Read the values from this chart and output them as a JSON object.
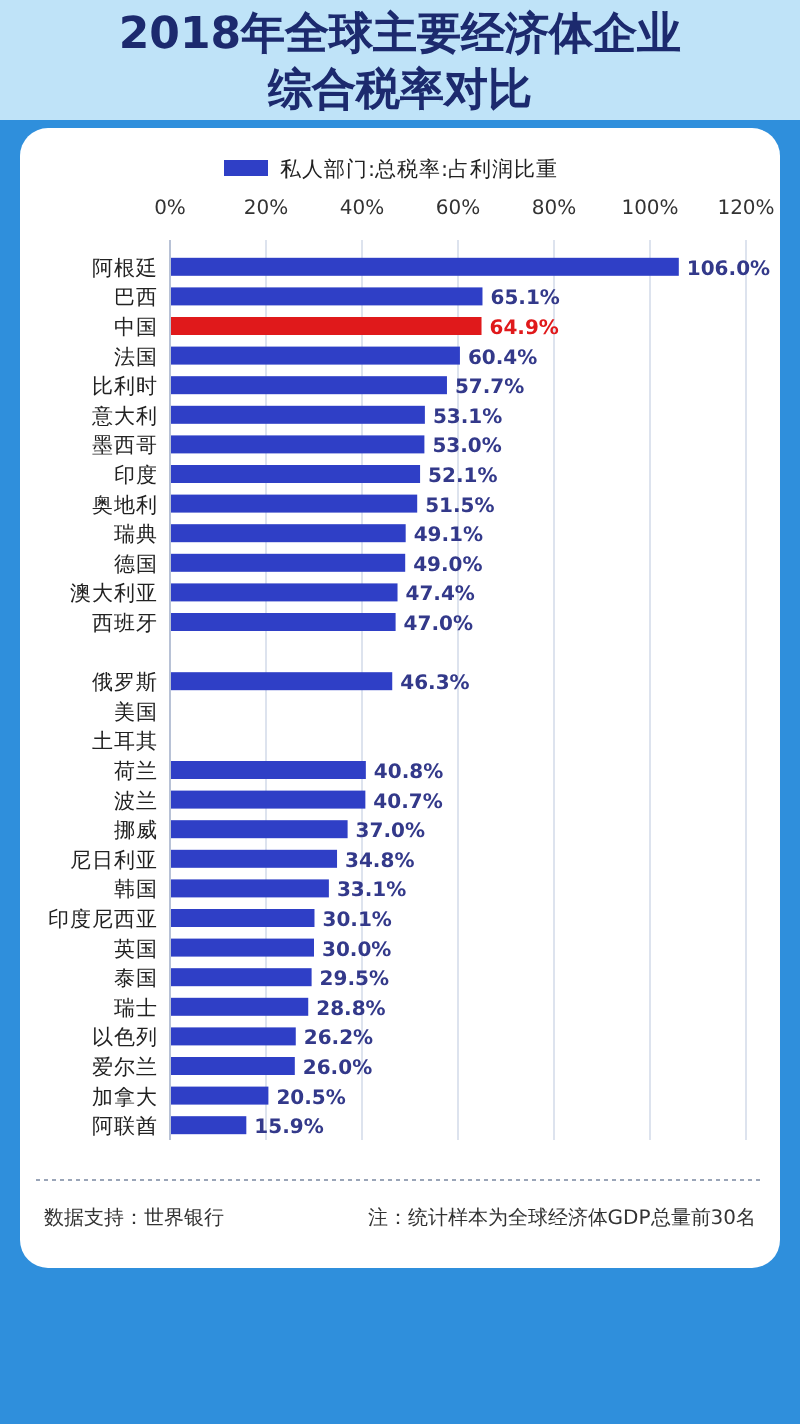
{
  "chart_data": {
    "type": "bar",
    "orientation": "horizontal",
    "title": "2018年全球主要经济体企业综合税率对比",
    "categories": [
      "阿根廷",
      "巴西",
      "中国",
      "法国",
      "比利时",
      "意大利",
      "墨西哥",
      "印度",
      "奥地利",
      "瑞典",
      "德国",
      "澳大利亚",
      "西班牙",
      null,
      "俄罗斯",
      "美国",
      "土耳其",
      "荷兰",
      "波兰",
      "挪威",
      "尼日利亚",
      "韩国",
      "印度尼西亚",
      "英国",
      "泰国",
      "瑞士",
      "以色列",
      "爱尔兰",
      "加拿大",
      "阿联酋"
    ],
    "series": [
      {
        "name": "私人部门:总税率:占利润比重",
        "color": "#2f3fc6",
        "colors": [
          "#2f3fc6",
          "#2f3fc6",
          "#e0191b",
          "#2f3fc6",
          "#2f3fc6",
          "#2f3fc6",
          "#2f3fc6",
          "#2f3fc6",
          "#2f3fc6",
          "#2f3fc6",
          "#2f3fc6",
          "#2f3fc6",
          "#2f3fc6",
          "#2f3fc6",
          "#2f3fc6",
          "#2f3fc6",
          "#2f3fc6",
          "#2f3fc6",
          "#2f3fc6",
          "#2f3fc6",
          "#2f3fc6",
          "#2f3fc6",
          "#2f3fc6",
          "#2f3fc6",
          "#2f3fc6",
          "#2f3fc6",
          "#2f3fc6",
          "#2f3fc6",
          "#2f3fc6",
          "#2f3fc6"
        ],
        "values": [
          106.0,
          65.1,
          64.9,
          60.4,
          57.7,
          53.1,
          53.0,
          52.1,
          51.5,
          49.1,
          49.0,
          47.4,
          47.0,
          null,
          46.3,
          null,
          null,
          40.8,
          40.7,
          37.0,
          34.8,
          33.1,
          30.1,
          30.0,
          29.5,
          28.8,
          26.2,
          26.0,
          20.5,
          15.9
        ],
        "value_labels": [
          "106.0%",
          "65.1%",
          "64.9%",
          "60.4%",
          "57.7%",
          "53.1%",
          "53.0%",
          "52.1%",
          "51.5%",
          "49.1%",
          "49.0%",
          "47.4%",
          "47.0%",
          null,
          "46.3%",
          null,
          null,
          "40.8%",
          "40.7%",
          "37.0%",
          "34.8%",
          "33.1%",
          "30.1%",
          "30.0%",
          "29.5%",
          "28.8%",
          "26.2%",
          "26.0%",
          "20.5%",
          "15.9%"
        ]
      }
    ],
    "xlim": [
      0,
      120
    ],
    "xticks": [
      {
        "value": 0,
        "label": "0%"
      },
      {
        "value": 20,
        "label": "20%"
      },
      {
        "value": 40,
        "label": "40%"
      },
      {
        "value": 60,
        "label": "60%"
      },
      {
        "value": 80,
        "label": "80%"
      },
      {
        "value": 100,
        "label": "100%"
      },
      {
        "value": 120,
        "label": "120%"
      }
    ],
    "grid": "x",
    "legend": "top",
    "annotations": [
      "数据支持：世界银行",
      "注：统计样本为全球经济体GDP总量前30名"
    ]
  }
}
